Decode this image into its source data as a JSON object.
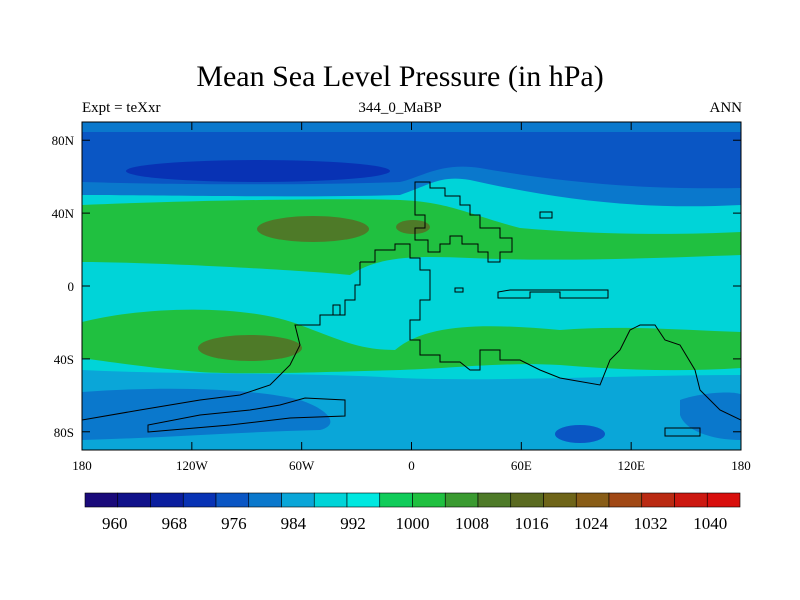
{
  "chart_data": {
    "type": "heatmap",
    "title": "Mean Sea Level Pressure (in hPa)",
    "left_label": "Expt = teXxr",
    "center_label": "344_0_MaBP",
    "right_label": "ANN",
    "x_ticks": [
      "180",
      "120W",
      "60W",
      "0",
      "60E",
      "120E",
      "180"
    ],
    "x_tick_values": [
      -180,
      -120,
      -60,
      0,
      60,
      120,
      180
    ],
    "y_ticks": [
      "80N",
      "40N",
      "0",
      "40S",
      "80S"
    ],
    "y_tick_values": [
      80,
      40,
      0,
      -40,
      -80
    ],
    "xlim": [
      -180,
      180
    ],
    "ylim": [
      -90,
      90
    ],
    "colorbar_labels": [
      "960",
      "968",
      "976",
      "984",
      "992",
      "1000",
      "1008",
      "1016",
      "1024",
      "1032",
      "1040"
    ],
    "colorbar_label_values": [
      960,
      968,
      976,
      984,
      992,
      1000,
      1008,
      1016,
      1024,
      1032,
      1040
    ],
    "colorbar_colors": [
      "#1a0a7a",
      "#10128a",
      "#0a1e9e",
      "#0832b4",
      "#0a56c4",
      "#0a78cc",
      "#0aa6d8",
      "#00d4d8",
      "#00e8e0",
      "#10cc5a",
      "#20c040",
      "#3a9a30",
      "#4e7a28",
      "#5a6a20",
      "#6e6418",
      "#885c16",
      "#a04814",
      "#ba2a12",
      "#cc1810",
      "#d80e0c"
    ]
  }
}
